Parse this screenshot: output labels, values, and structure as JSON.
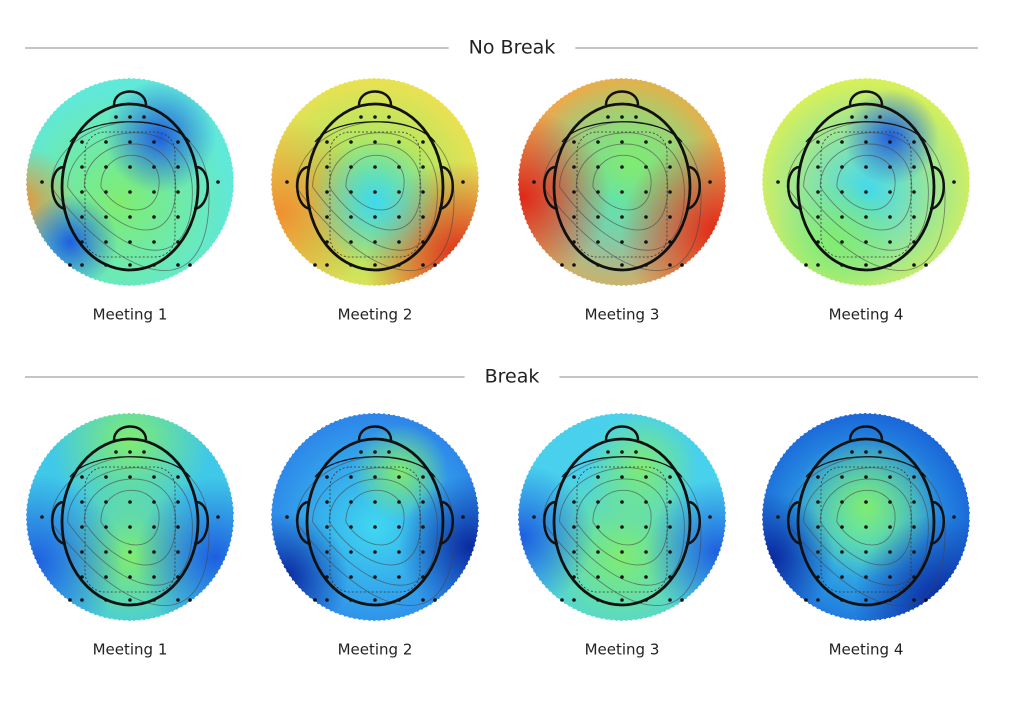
{
  "sections": [
    {
      "title": "No Break",
      "items": [
        "Meeting 1",
        "Meeting 2",
        "Meeting 3",
        "Meeting 4"
      ]
    },
    {
      "title": "Break",
      "items": [
        "Meeting 1",
        "Meeting 2",
        "Meeting 3",
        "Meeting 4"
      ]
    }
  ]
}
